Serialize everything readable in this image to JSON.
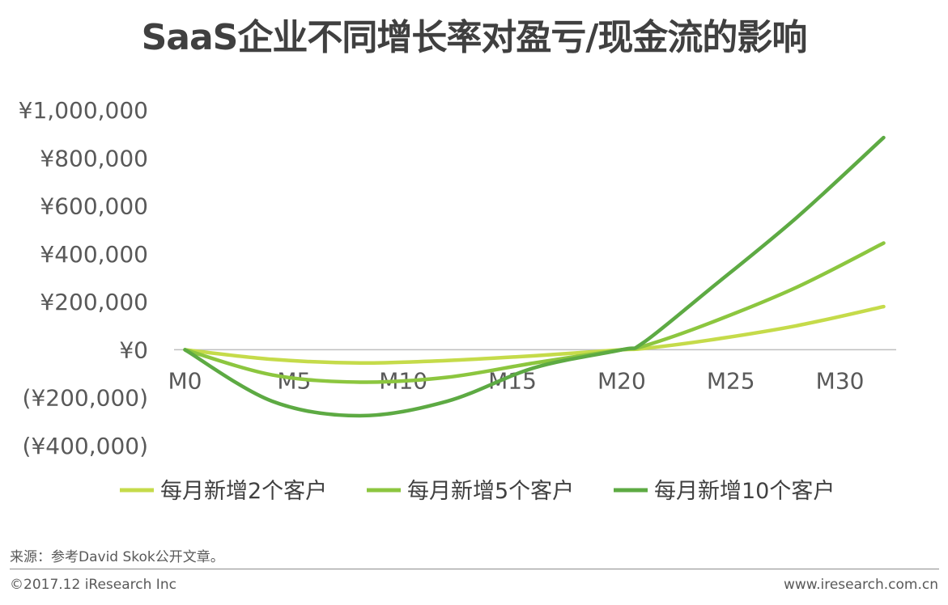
{
  "title": "SaaS企业不同增长率对盈亏/现金流的影响",
  "chart_data": {
    "type": "line",
    "title": "SaaS企业不同增长率对盈亏/现金流的影响",
    "x": [
      0,
      4,
      8,
      12,
      16,
      20,
      21,
      24,
      28,
      32
    ],
    "xticks": [
      0,
      5,
      10,
      15,
      20,
      25,
      30
    ],
    "xtick_labels": [
      "M0",
      "M5",
      "M10",
      "M15",
      "M20",
      "M25",
      "M30"
    ],
    "xlim": [
      -0.5,
      32.5
    ],
    "ytick_values": [
      1000000,
      800000,
      600000,
      400000,
      200000,
      0,
      -200000,
      -400000
    ],
    "yticks": [
      "¥1,000,000",
      "¥800,000",
      "¥600,000",
      "¥400,000",
      "¥200,000",
      "¥0",
      "(¥200,000)",
      "(¥400,000)"
    ],
    "ylim": [
      -400000,
      1000000
    ],
    "series": [
      {
        "name": "每月新增2个客户",
        "color": "#C5DB4A",
        "values": [
          0,
          -40000,
          -55000,
          -45000,
          -25000,
          0,
          5000,
          40000,
          100000,
          180000
        ]
      },
      {
        "name": "每月新增5个客户",
        "color": "#8CC63F",
        "values": [
          0,
          -105000,
          -135000,
          -115000,
          -55000,
          0,
          15000,
          110000,
          260000,
          445000
        ]
      },
      {
        "name": "每月新增10个客户",
        "color": "#5DAA43",
        "values": [
          0,
          -215000,
          -275000,
          -215000,
          -75000,
          0,
          30000,
          250000,
          550000,
          885000
        ]
      }
    ],
    "legend_position": "bottom"
  },
  "source": "来源：参考David Skok公开文章。",
  "copyright": "©2017.12 iResearch Inc",
  "website": "www.iresearch.com.cn"
}
